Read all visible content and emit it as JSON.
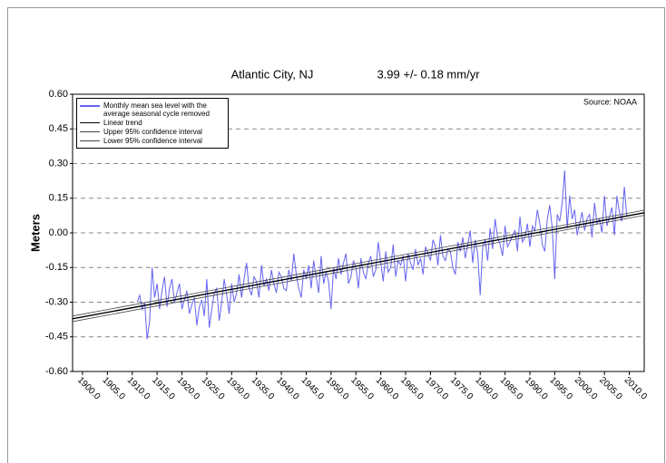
{
  "chart_data": {
    "type": "line",
    "title": "Atlantic City, NJ",
    "subtitle": "3.99 +/- 0.18 mm/yr",
    "annotation": "Source: NOAA",
    "y_label": "Meters",
    "grid": true,
    "legend_position": "upper left",
    "xlim": [
      1898,
      2013
    ],
    "ylim": [
      -0.6,
      0.6
    ],
    "xticks": [
      {
        "value": 1900,
        "label": "1900.0"
      },
      {
        "value": 1905,
        "label": "1905.0"
      },
      {
        "value": 1910,
        "label": "1910.0"
      },
      {
        "value": 1915,
        "label": "1915.0"
      },
      {
        "value": 1920,
        "label": "1920.0"
      },
      {
        "value": 1925,
        "label": "1925.0"
      },
      {
        "value": 1930,
        "label": "1930.0"
      },
      {
        "value": 1935,
        "label": "1935.0"
      },
      {
        "value": 1940,
        "label": "1940.0"
      },
      {
        "value": 1945,
        "label": "1945.0"
      },
      {
        "value": 1950,
        "label": "1950.0"
      },
      {
        "value": 1955,
        "label": "1955.0"
      },
      {
        "value": 1960,
        "label": "1960.0"
      },
      {
        "value": 1965,
        "label": "1965.0"
      },
      {
        "value": 1970,
        "label": "1970.0"
      },
      {
        "value": 1975,
        "label": "1975.0"
      },
      {
        "value": 1980,
        "label": "1980.0"
      },
      {
        "value": 1985,
        "label": "1985.0"
      },
      {
        "value": 1990,
        "label": "1990.0"
      },
      {
        "value": 1995,
        "label": "1995.0"
      },
      {
        "value": 2000,
        "label": "2000.0"
      },
      {
        "value": 2005,
        "label": "2005.0"
      },
      {
        "value": 2010,
        "label": "2010.0"
      }
    ],
    "yticks": [
      {
        "value": 0.6,
        "label": "0.60"
      },
      {
        "value": 0.45,
        "label": "0.45"
      },
      {
        "value": 0.3,
        "label": "0.30"
      },
      {
        "value": 0.15,
        "label": "0.15"
      },
      {
        "value": 0,
        "label": "0.00"
      },
      {
        "value": -0.15,
        "label": "-0.15"
      },
      {
        "value": -0.3,
        "label": "-0.30"
      },
      {
        "value": -0.45,
        "label": "-0.45"
      },
      {
        "value": -0.6,
        "label": "-0.60"
      }
    ],
    "series": [
      {
        "name": "Monthly mean sea level with the average seasonal cycle removed",
        "color": "#6464f0",
        "x": [
          1911,
          1911.5,
          1912,
          1912.5,
          1913,
          1913.5,
          1914,
          1914.5,
          1915,
          1915.5,
          1916,
          1916.5,
          1917,
          1917.5,
          1918,
          1918.5,
          1919,
          1919.5,
          1920,
          1920.5,
          1921,
          1921.5,
          1922,
          1922.5,
          1923,
          1923.5,
          1924,
          1924.5,
          1925,
          1925.5,
          1926,
          1926.5,
          1927,
          1927.5,
          1928,
          1928.5,
          1929,
          1929.5,
          1930,
          1930.5,
          1931,
          1931.5,
          1932,
          1932.5,
          1933,
          1933.5,
          1934,
          1934.5,
          1935,
          1935.5,
          1936,
          1936.5,
          1937,
          1937.5,
          1938,
          1938.5,
          1939,
          1939.5,
          1940,
          1940.5,
          1941,
          1941.5,
          1942,
          1942.5,
          1943,
          1943.5,
          1944,
          1944.5,
          1945,
          1945.5,
          1946,
          1946.5,
          1947,
          1947.5,
          1948,
          1948.5,
          1949,
          1949.5,
          1950,
          1950.5,
          1951,
          1951.5,
          1952,
          1952.5,
          1953,
          1953.5,
          1954,
          1954.5,
          1955,
          1955.5,
          1956,
          1956.5,
          1957,
          1957.5,
          1958,
          1958.5,
          1959,
          1959.5,
          1960,
          1960.5,
          1961,
          1961.5,
          1962,
          1962.5,
          1963,
          1963.5,
          1964,
          1964.5,
          1965,
          1965.5,
          1966,
          1966.5,
          1967,
          1967.5,
          1968,
          1968.5,
          1969,
          1969.5,
          1970,
          1970.5,
          1971,
          1971.5,
          1972,
          1972.5,
          1973,
          1973.5,
          1974,
          1974.5,
          1975,
          1975.5,
          1976,
          1976.5,
          1977,
          1977.5,
          1978,
          1978.5,
          1979,
          1979.5,
          1980,
          1980.5,
          1981,
          1981.5,
          1982,
          1982.5,
          1983,
          1983.5,
          1984,
          1984.5,
          1985,
          1985.5,
          1986,
          1986.5,
          1987,
          1987.5,
          1988,
          1988.5,
          1989,
          1989.5,
          1990,
          1990.5,
          1991,
          1991.5,
          1992,
          1992.5,
          1993,
          1993.5,
          1994,
          1994.5,
          1995,
          1995.5,
          1996,
          1996.5,
          1997,
          1997.5,
          1998,
          1998.5,
          1999,
          1999.5,
          2000,
          2000.5,
          2001,
          2001.5,
          2002,
          2002.5,
          2003,
          2003.5,
          2004,
          2004.5,
          2005,
          2005.5,
          2006,
          2006.5,
          2007,
          2007.5,
          2008,
          2008.5,
          2009,
          2009.5
        ],
        "values": [
          -0.3,
          -0.27,
          -0.33,
          -0.3,
          -0.46,
          -0.38,
          -0.15,
          -0.28,
          -0.22,
          -0.33,
          -0.25,
          -0.19,
          -0.32,
          -0.24,
          -0.2,
          -0.3,
          -0.26,
          -0.22,
          -0.33,
          -0.29,
          -0.25,
          -0.35,
          -0.31,
          -0.28,
          -0.4,
          -0.32,
          -0.29,
          -0.36,
          -0.2,
          -0.41,
          -0.33,
          -0.26,
          -0.24,
          -0.38,
          -0.3,
          -0.2,
          -0.27,
          -0.35,
          -0.22,
          -0.3,
          -0.26,
          -0.18,
          -0.28,
          -0.2,
          -0.13,
          -0.24,
          -0.27,
          -0.19,
          -0.21,
          -0.28,
          -0.14,
          -0.23,
          -0.2,
          -0.25,
          -0.16,
          -0.22,
          -0.26,
          -0.17,
          -0.19,
          -0.24,
          -0.25,
          -0.16,
          -0.21,
          -0.09,
          -0.18,
          -0.24,
          -0.28,
          -0.16,
          -0.2,
          -0.14,
          -0.24,
          -0.12,
          -0.19,
          -0.26,
          -0.1,
          -0.22,
          -0.17,
          -0.21,
          -0.33,
          -0.15,
          -0.2,
          -0.11,
          -0.18,
          -0.13,
          -0.09,
          -0.22,
          -0.19,
          -0.12,
          -0.15,
          -0.24,
          -0.11,
          -0.17,
          -0.2,
          -0.13,
          -0.1,
          -0.19,
          -0.16,
          -0.04,
          -0.13,
          -0.21,
          -0.08,
          -0.17,
          -0.15,
          -0.05,
          -0.19,
          -0.12,
          -0.14,
          -0.1,
          -0.21,
          -0.09,
          -0.13,
          -0.16,
          -0.07,
          -0.14,
          -0.11,
          -0.18,
          -0.06,
          -0.09,
          -0.12,
          -0.03,
          -0.06,
          -0.14,
          -0.01,
          -0.1,
          -0.12,
          -0.07,
          -0.08,
          -0.15,
          -0.18,
          -0.04,
          -0.08,
          -0.02,
          -0.11,
          -0.05,
          0.01,
          -0.13,
          -0.03,
          -0.09,
          -0.27,
          -0.06,
          -0.03,
          -0.12,
          0.02,
          -0.07,
          0.06,
          -0.02,
          -0.05,
          -0.1,
          0.03,
          -0.06,
          -0.04,
          -0.01,
          0.01,
          -0.08,
          0.07,
          -0.04,
          -0.02,
          0.04,
          -0.06,
          0.03,
          0.01,
          0.1,
          0.04,
          -0.05,
          -0.08,
          0.06,
          0.12,
          0.02,
          -0.2,
          0.08,
          0.05,
          0.13,
          0.27,
          0.02,
          0.16,
          0.06,
          0.1,
          -0.01,
          0.04,
          0.09,
          0.01,
          0.06,
          0.08,
          -0.02,
          0.13,
          0.04,
          0.06,
          0.0,
          0.16,
          0.03,
          0.07,
          0.11,
          -0.01,
          0.16,
          0.09,
          0.05,
          0.2,
          0.07
        ]
      },
      {
        "name": "Linear trend",
        "color": "#000000",
        "x": [
          1898,
          2013
        ],
        "values": [
          -0.372,
          0.087
        ]
      },
      {
        "name": "Upper 95% confidence interval",
        "color": "#444444",
        "x": [
          1898,
          2013
        ],
        "values": [
          -0.36,
          0.098
        ]
      },
      {
        "name": "Lower 95% confidence interval",
        "color": "#444444",
        "x": [
          1898,
          2013
        ],
        "values": [
          -0.384,
          0.076
        ]
      }
    ]
  }
}
